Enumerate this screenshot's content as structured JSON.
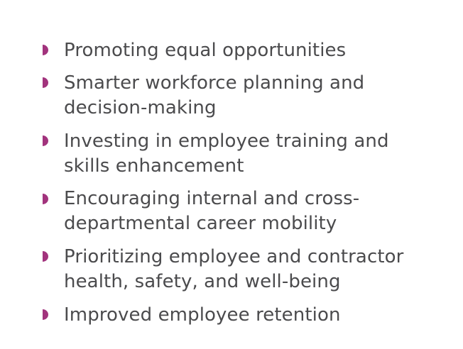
{
  "accent_color": "#a2337d",
  "text_color": "#4b4b4d",
  "bullet_icon": "half-circle-bullet-icon",
  "items": [
    {
      "lines": [
        "Promoting equal opportunities"
      ]
    },
    {
      "lines": [
        "Smarter workforce planning and",
        "decision-making"
      ]
    },
    {
      "lines": [
        "Investing in employee training and",
        "skills enhancement"
      ]
    },
    {
      "lines": [
        "Encouraging internal and cross-",
        "departmental career mobility"
      ]
    },
    {
      "lines": [
        "Prioritizing employee and contractor",
        "health, safety, and well-being"
      ]
    },
    {
      "lines": [
        "Improved employee retention"
      ]
    }
  ]
}
